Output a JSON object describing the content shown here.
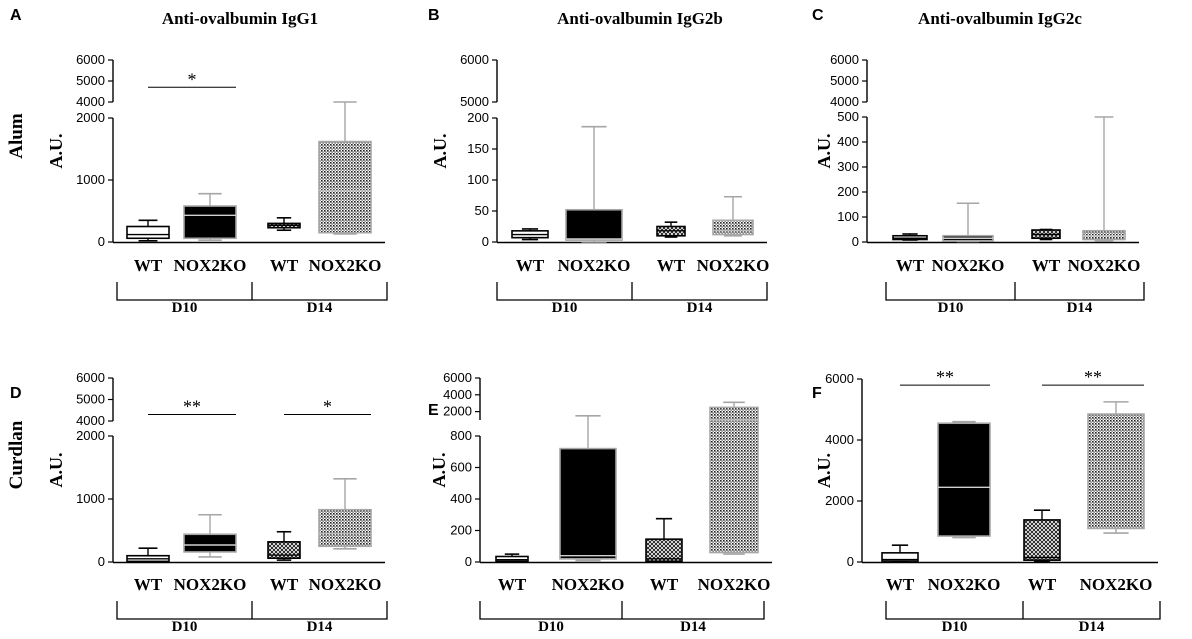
{
  "figure": {
    "col_titles": [
      "Anti-ovalbumin IgG1",
      "Anti-ovalbumin IgG2b",
      "Anti-ovalbumin IgG2c"
    ],
    "row_labels": [
      "Alum",
      "Curdlan"
    ],
    "colors": {
      "ink": "#000000",
      "grey": "#a6a6a6",
      "dark": "#111111"
    }
  },
  "chart_data": [
    {
      "panel": "A",
      "type": "boxplot",
      "title": "Anti-ovalbumin IgG1",
      "row": "Alum",
      "ylabel": "A.U.",
      "categories": [
        "WT",
        "NOX2KO",
        "WT",
        "NOX2KO"
      ],
      "groups": [
        "D10",
        "D14"
      ],
      "axis_breaks": [
        {
          "range": [
            0,
            2000
          ],
          "ticks": [
            0,
            1000,
            2000
          ]
        },
        {
          "range": [
            4000,
            6000
          ],
          "ticks": [
            4000,
            5000,
            6000
          ]
        }
      ],
      "boxes": [
        {
          "label": "WT",
          "group": "D10",
          "whisker_low": 20,
          "q1": 60,
          "median": 120,
          "q3": 250,
          "whisker_high": 350,
          "fill": "white"
        },
        {
          "label": "NOX2KO",
          "group": "D10",
          "whisker_low": 30,
          "q1": 60,
          "median": 430,
          "q3": 580,
          "whisker_high": 780,
          "fill": "black"
        },
        {
          "label": "WT",
          "group": "D14",
          "whisker_low": 190,
          "q1": 230,
          "median": 270,
          "q3": 300,
          "whisker_high": 390,
          "fill": "hatch"
        },
        {
          "label": "NOX2KO",
          "group": "D14",
          "whisker_low": 130,
          "q1": 150,
          "median": 830,
          "q3": 1620,
          "whisker_high": 4000,
          "fill": "dots"
        }
      ],
      "significance": [
        {
          "from": 0,
          "to": 1,
          "label": "*",
          "y": 4700
        }
      ]
    },
    {
      "panel": "B",
      "type": "boxplot",
      "title": "Anti-ovalbumin IgG2b",
      "row": "Alum",
      "ylabel": "A.U.",
      "categories": [
        "WT",
        "NOX2KO",
        "WT",
        "NOX2KO"
      ],
      "groups": [
        "D10",
        "D14"
      ],
      "axis_breaks": [
        {
          "range": [
            0,
            200
          ],
          "ticks": [
            0,
            50,
            100,
            150,
            200
          ]
        },
        {
          "range": [
            5000,
            6000
          ],
          "ticks": [
            5000,
            6000
          ]
        }
      ],
      "boxes": [
        {
          "label": "WT",
          "group": "D10",
          "whisker_low": 4,
          "q1": 7,
          "median": 12,
          "q3": 18,
          "whisker_high": 21,
          "fill": "white"
        },
        {
          "label": "NOX2KO",
          "group": "D10",
          "whisker_low": 0,
          "q1": 3,
          "median": 5,
          "q3": 52,
          "whisker_high": 186,
          "fill": "black"
        },
        {
          "label": "WT",
          "group": "D14",
          "whisker_low": 8,
          "q1": 10,
          "median": 18,
          "q3": 25,
          "whisker_high": 32,
          "fill": "hatch"
        },
        {
          "label": "NOX2KO",
          "group": "D14",
          "whisker_low": 10,
          "q1": 12,
          "median": 18,
          "q3": 35,
          "whisker_high": 73,
          "fill": "dots"
        }
      ],
      "significance": []
    },
    {
      "panel": "C",
      "type": "boxplot",
      "title": "Anti-ovalbumin IgG2c",
      "row": "Alum",
      "ylabel": "A.U.",
      "categories": [
        "WT",
        "NOX2KO",
        "WT",
        "NOX2KO"
      ],
      "groups": [
        "D10",
        "D14"
      ],
      "axis_breaks": [
        {
          "range": [
            0,
            500
          ],
          "ticks": [
            0,
            100,
            200,
            300,
            400,
            500
          ]
        },
        {
          "range": [
            4000,
            6000
          ],
          "ticks": [
            4000,
            5000,
            6000
          ]
        }
      ],
      "boxes": [
        {
          "label": "WT",
          "group": "D10",
          "whisker_low": 8,
          "q1": 10,
          "median": 15,
          "q3": 25,
          "whisker_high": 32,
          "fill": "white"
        },
        {
          "label": "NOX2KO",
          "group": "D10",
          "whisker_low": 2,
          "q1": 5,
          "median": 15,
          "q3": 25,
          "whisker_high": 155,
          "fill": "black"
        },
        {
          "label": "WT",
          "group": "D14",
          "whisker_low": 10,
          "q1": 15,
          "median": 30,
          "q3": 48,
          "whisker_high": 50,
          "fill": "hatch"
        },
        {
          "label": "NOX2KO",
          "group": "D14",
          "whisker_low": 5,
          "q1": 10,
          "median": 25,
          "q3": 45,
          "whisker_high": 500,
          "fill": "dots"
        }
      ],
      "significance": []
    },
    {
      "panel": "D",
      "type": "boxplot",
      "title": "",
      "row": "Curdlan",
      "ylabel": "A.U.",
      "categories": [
        "WT",
        "NOX2KO",
        "WT",
        "NOX2KO"
      ],
      "groups": [
        "D10",
        "D14"
      ],
      "axis_breaks": [
        {
          "range": [
            0,
            2000
          ],
          "ticks": [
            0,
            1000,
            2000
          ]
        },
        {
          "range": [
            4000,
            6000
          ],
          "ticks": [
            4000,
            5000,
            6000
          ]
        }
      ],
      "boxes": [
        {
          "label": "WT",
          "group": "D10",
          "whisker_low": 5,
          "q1": 10,
          "median": 50,
          "q3": 100,
          "whisker_high": 220,
          "fill": "white"
        },
        {
          "label": "NOX2KO",
          "group": "D10",
          "whisker_low": 80,
          "q1": 160,
          "median": 270,
          "q3": 440,
          "whisker_high": 750,
          "fill": "black"
        },
        {
          "label": "WT",
          "group": "D14",
          "whisker_low": 30,
          "q1": 60,
          "median": 110,
          "q3": 320,
          "whisker_high": 480,
          "fill": "hatch"
        },
        {
          "label": "NOX2KO",
          "group": "D14",
          "whisker_low": 210,
          "q1": 250,
          "median": 450,
          "q3": 830,
          "whisker_high": 1320,
          "fill": "dots"
        }
      ],
      "significance": [
        {
          "from": 0,
          "to": 1,
          "label": "**",
          "y": 4300
        },
        {
          "from": 2,
          "to": 3,
          "label": "*",
          "y": 4300
        }
      ]
    },
    {
      "panel": "E",
      "type": "boxplot",
      "title": "",
      "row": "Curdlan",
      "ylabel": "A.U.",
      "categories": [
        "WT",
        "NOX2KO",
        "WT",
        "NOX2KO"
      ],
      "groups": [
        "D10",
        "D14"
      ],
      "axis_breaks": [
        {
          "range": [
            0,
            800
          ],
          "ticks": [
            0,
            200,
            400,
            600,
            800
          ]
        },
        {
          "range": [
            1000,
            6000
          ],
          "ticks": [
            2000,
            4000,
            6000
          ]
        }
      ],
      "boxes": [
        {
          "label": "WT",
          "group": "D10",
          "whisker_low": 2,
          "q1": 5,
          "median": 15,
          "q3": 35,
          "whisker_high": 50,
          "fill": "white"
        },
        {
          "label": "NOX2KO",
          "group": "D10",
          "whisker_low": 10,
          "q1": 20,
          "median": 40,
          "q3": 720,
          "whisker_high": 1500,
          "fill": "black"
        },
        {
          "label": "WT",
          "group": "D14",
          "whisker_low": 2,
          "q1": 5,
          "median": 20,
          "q3": 145,
          "whisker_high": 275,
          "fill": "hatch"
        },
        {
          "label": "NOX2KO",
          "group": "D14",
          "whisker_low": 50,
          "q1": 60,
          "median": 1000,
          "q3": 2500,
          "whisker_high": 3100,
          "fill": "dots"
        }
      ],
      "significance": []
    },
    {
      "panel": "F",
      "type": "boxplot",
      "title": "",
      "row": "Curdlan",
      "ylabel": "A.U.",
      "categories": [
        "WT",
        "NOX2KO",
        "WT",
        "NOX2KO"
      ],
      "groups": [
        "D10",
        "D14"
      ],
      "axis_breaks": [
        {
          "range": [
            0,
            6000
          ],
          "ticks": [
            0,
            2000,
            4000,
            6000
          ]
        }
      ],
      "boxes": [
        {
          "label": "WT",
          "group": "D10",
          "whisker_low": 10,
          "q1": 30,
          "median": 80,
          "q3": 300,
          "whisker_high": 550,
          "fill": "white"
        },
        {
          "label": "NOX2KO",
          "group": "D10",
          "whisker_low": 800,
          "q1": 850,
          "median": 2450,
          "q3": 4550,
          "whisker_high": 4600,
          "fill": "black"
        },
        {
          "label": "WT",
          "group": "D14",
          "whisker_low": 20,
          "q1": 60,
          "median": 150,
          "q3": 1380,
          "whisker_high": 1700,
          "fill": "hatch"
        },
        {
          "label": "NOX2KO",
          "group": "D14",
          "whisker_low": 950,
          "q1": 1100,
          "median": 3100,
          "q3": 4850,
          "whisker_high": 5250,
          "fill": "dots"
        }
      ],
      "significance": [
        {
          "from": 0,
          "to": 1,
          "label": "**",
          "y": 5800
        },
        {
          "from": 2,
          "to": 3,
          "label": "**",
          "y": 5800
        }
      ]
    }
  ]
}
